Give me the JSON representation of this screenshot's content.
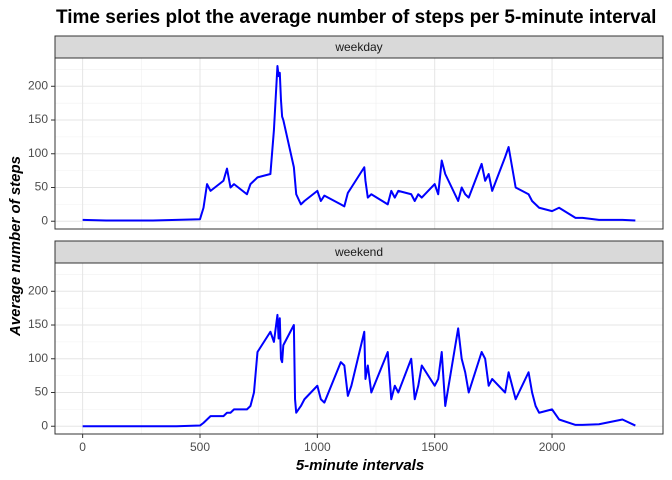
{
  "chart_data": {
    "type": "line",
    "title": "Time series plot the average number of steps per 5-minute interval",
    "x_label": "5-minute intervals",
    "y_label": "Average number of steps",
    "x": [
      0,
      100,
      200,
      300,
      400,
      500,
      515,
      530,
      545,
      600,
      615,
      630,
      645,
      700,
      715,
      730,
      745,
      800,
      815,
      830,
      835,
      840,
      845,
      850,
      855,
      900,
      905,
      910,
      930,
      945,
      1000,
      1015,
      1030,
      1100,
      1115,
      1130,
      1145,
      1200,
      1205,
      1215,
      1230,
      1300,
      1315,
      1330,
      1345,
      1400,
      1415,
      1430,
      1445,
      1500,
      1515,
      1530,
      1545,
      1600,
      1615,
      1630,
      1645,
      1700,
      1715,
      1730,
      1745,
      1800,
      1815,
      1830,
      1845,
      1900,
      1915,
      1930,
      1945,
      2000,
      2030,
      2100,
      2130,
      2200,
      2300,
      2355
    ],
    "series": [
      {
        "name": "weekday",
        "color": "#0000ff",
        "values": [
          2,
          1,
          1,
          1,
          2,
          3,
          20,
          55,
          45,
          60,
          78,
          50,
          55,
          40,
          55,
          60,
          65,
          70,
          135,
          230,
          215,
          220,
          180,
          155,
          150,
          80,
          60,
          40,
          25,
          30,
          45,
          30,
          38,
          25,
          22,
          42,
          50,
          80,
          60,
          35,
          40,
          25,
          45,
          35,
          45,
          40,
          30,
          40,
          35,
          55,
          40,
          90,
          70,
          30,
          50,
          40,
          35,
          85,
          60,
          70,
          45,
          95,
          110,
          80,
          50,
          40,
          30,
          25,
          20,
          15,
          20,
          5,
          5,
          2,
          2,
          1
        ]
      },
      {
        "name": "weekend",
        "color": "#0000ff",
        "values": [
          0,
          0,
          0,
          0,
          0,
          1,
          5,
          10,
          15,
          15,
          20,
          20,
          25,
          25,
          30,
          50,
          110,
          140,
          125,
          165,
          130,
          160,
          100,
          95,
          120,
          150,
          40,
          20,
          30,
          40,
          60,
          40,
          35,
          95,
          90,
          45,
          60,
          140,
          70,
          90,
          50,
          110,
          40,
          60,
          50,
          100,
          40,
          60,
          90,
          60,
          70,
          110,
          30,
          145,
          100,
          80,
          50,
          110,
          100,
          60,
          70,
          50,
          80,
          60,
          40,
          80,
          50,
          30,
          20,
          25,
          10,
          2,
          2,
          3,
          10,
          1
        ]
      }
    ],
    "xlim": [
      -117.75,
      2472.75
    ],
    "xticks": [
      0,
      500,
      1000,
      1500,
      2000
    ],
    "ylim": [
      -11.5,
      241.9
    ],
    "yticks": [
      0,
      50,
      100,
      150,
      200
    ],
    "grid": true
  }
}
